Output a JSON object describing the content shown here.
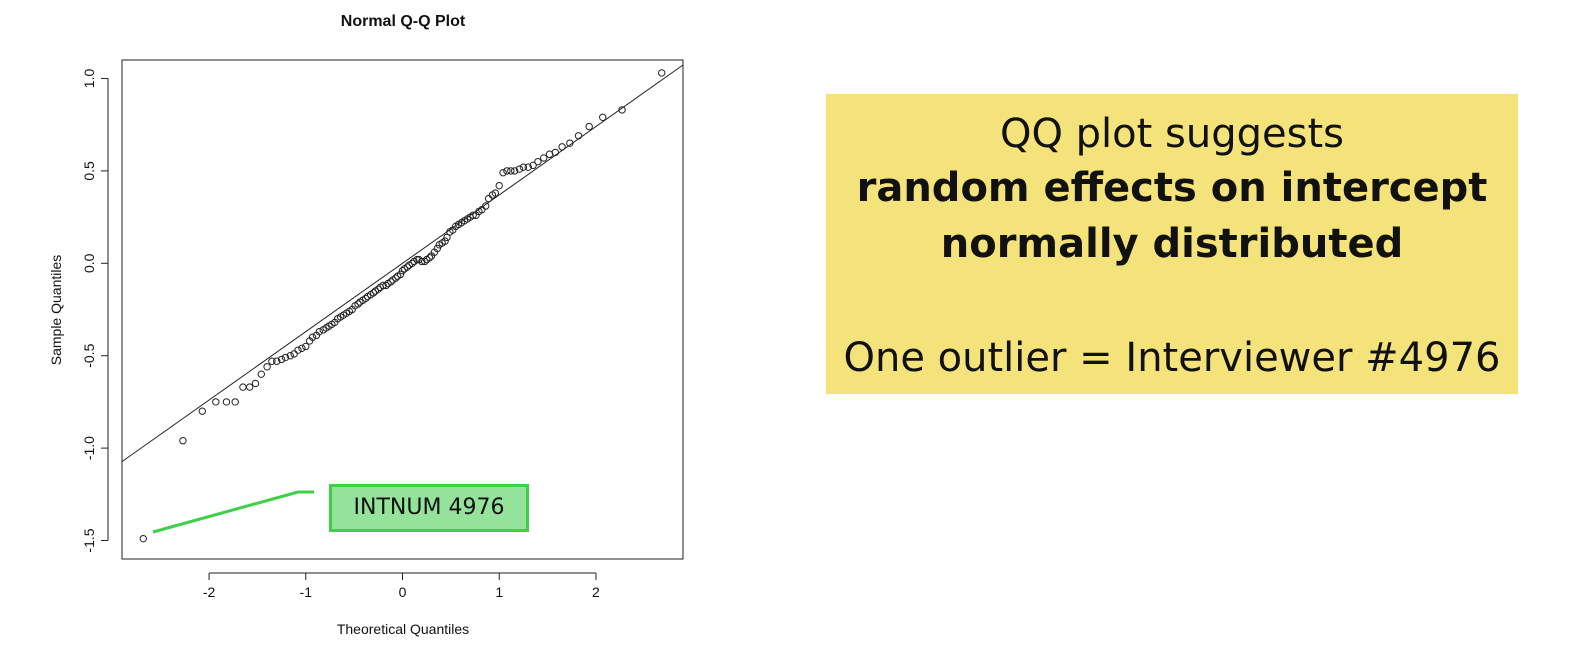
{
  "chart_data": {
    "type": "scatter",
    "title": "Normal Q-Q Plot",
    "xlabel": "Theoretical Quantiles",
    "ylabel": "Sample Quantiles",
    "xlim": [
      -2.9,
      2.9
    ],
    "ylim": [
      -1.6,
      1.1
    ],
    "xticks": [
      -2,
      -1,
      0,
      1,
      2
    ],
    "yticks": [
      -1.5,
      -1.0,
      -0.5,
      0.0,
      0.5,
      1.0
    ],
    "xtick_labels": [
      "-2",
      "-1",
      "0",
      "1",
      "2"
    ],
    "ytick_labels": [
      "-1.5",
      "-1.0",
      "-0.5",
      "0.0",
      "0.5",
      "1.0"
    ],
    "grid": false,
    "reference_line": {
      "intercept": 0.0,
      "slope": 0.37
    },
    "points": [
      [
        -2.68,
        -1.49
      ],
      [
        -2.27,
        -0.96
      ],
      [
        -2.07,
        -0.8
      ],
      [
        -1.93,
        -0.75
      ],
      [
        -1.82,
        -0.75
      ],
      [
        -1.73,
        -0.75
      ],
      [
        -1.65,
        -0.67
      ],
      [
        -1.58,
        -0.67
      ],
      [
        -1.52,
        -0.65
      ],
      [
        -1.46,
        -0.6
      ],
      [
        -1.4,
        -0.56
      ],
      [
        -1.35,
        -0.53
      ],
      [
        -1.3,
        -0.53
      ],
      [
        -1.25,
        -0.52
      ],
      [
        -1.21,
        -0.51
      ],
      [
        -1.16,
        -0.5
      ],
      [
        -1.12,
        -0.49
      ],
      [
        -1.08,
        -0.47
      ],
      [
        -1.04,
        -0.46
      ],
      [
        -1.0,
        -0.45
      ],
      [
        -0.96,
        -0.42
      ],
      [
        -0.93,
        -0.4
      ],
      [
        -0.89,
        -0.39
      ],
      [
        -0.86,
        -0.37
      ],
      [
        -0.82,
        -0.36
      ],
      [
        -0.79,
        -0.35
      ],
      [
        -0.76,
        -0.34
      ],
      [
        -0.73,
        -0.33
      ],
      [
        -0.7,
        -0.32
      ],
      [
        -0.67,
        -0.3
      ],
      [
        -0.64,
        -0.29
      ],
      [
        -0.61,
        -0.28
      ],
      [
        -0.58,
        -0.27
      ],
      [
        -0.55,
        -0.26
      ],
      [
        -0.52,
        -0.25
      ],
      [
        -0.49,
        -0.23
      ],
      [
        -0.46,
        -0.22
      ],
      [
        -0.44,
        -0.21
      ],
      [
        -0.41,
        -0.2
      ],
      [
        -0.38,
        -0.19
      ],
      [
        -0.36,
        -0.18
      ],
      [
        -0.33,
        -0.17
      ],
      [
        -0.3,
        -0.16
      ],
      [
        -0.28,
        -0.15
      ],
      [
        -0.25,
        -0.14
      ],
      [
        -0.23,
        -0.13
      ],
      [
        -0.2,
        -0.12
      ],
      [
        -0.17,
        -0.12
      ],
      [
        -0.15,
        -0.11
      ],
      [
        -0.12,
        -0.1
      ],
      [
        -0.1,
        -0.09
      ],
      [
        -0.07,
        -0.08
      ],
      [
        -0.05,
        -0.07
      ],
      [
        -0.02,
        -0.06
      ],
      [
        0.0,
        -0.04
      ],
      [
        0.02,
        -0.03
      ],
      [
        0.05,
        -0.02
      ],
      [
        0.07,
        -0.01
      ],
      [
        0.1,
        0.0
      ],
      [
        0.12,
        0.01
      ],
      [
        0.15,
        0.02
      ],
      [
        0.17,
        0.02
      ],
      [
        0.2,
        0.01
      ],
      [
        0.23,
        0.01
      ],
      [
        0.25,
        0.02
      ],
      [
        0.28,
        0.03
      ],
      [
        0.3,
        0.04
      ],
      [
        0.33,
        0.06
      ],
      [
        0.36,
        0.08
      ],
      [
        0.38,
        0.1
      ],
      [
        0.41,
        0.11
      ],
      [
        0.44,
        0.12
      ],
      [
        0.46,
        0.14
      ],
      [
        0.49,
        0.17
      ],
      [
        0.52,
        0.18
      ],
      [
        0.55,
        0.2
      ],
      [
        0.58,
        0.21
      ],
      [
        0.61,
        0.22
      ],
      [
        0.64,
        0.23
      ],
      [
        0.67,
        0.24
      ],
      [
        0.7,
        0.25
      ],
      [
        0.73,
        0.26
      ],
      [
        0.76,
        0.26
      ],
      [
        0.79,
        0.28
      ],
      [
        0.82,
        0.29
      ],
      [
        0.86,
        0.31
      ],
      [
        0.89,
        0.35
      ],
      [
        0.93,
        0.37
      ],
      [
        0.96,
        0.38
      ],
      [
        1.0,
        0.42
      ],
      [
        1.04,
        0.49
      ],
      [
        1.08,
        0.5
      ],
      [
        1.12,
        0.5
      ],
      [
        1.16,
        0.5
      ],
      [
        1.21,
        0.51
      ],
      [
        1.25,
        0.52
      ],
      [
        1.3,
        0.52
      ],
      [
        1.35,
        0.53
      ],
      [
        1.4,
        0.55
      ],
      [
        1.46,
        0.57
      ],
      [
        1.52,
        0.59
      ],
      [
        1.58,
        0.6
      ],
      [
        1.65,
        0.63
      ],
      [
        1.73,
        0.65
      ],
      [
        1.82,
        0.69
      ],
      [
        1.93,
        0.74
      ],
      [
        2.07,
        0.79
      ],
      [
        2.27,
        0.83
      ],
      [
        2.68,
        1.03
      ]
    ]
  },
  "annotation": {
    "label": "INTNUM 4976"
  },
  "callout": {
    "line1": "QQ plot suggests",
    "line2": "random effects on intercept",
    "line3": "normally distributed",
    "line4": "One outlier = Interviewer #4976",
    "color": "#f4e37a"
  },
  "colors": {
    "annotation_fill": "#95e29a",
    "annotation_border": "#3fcf4a"
  }
}
